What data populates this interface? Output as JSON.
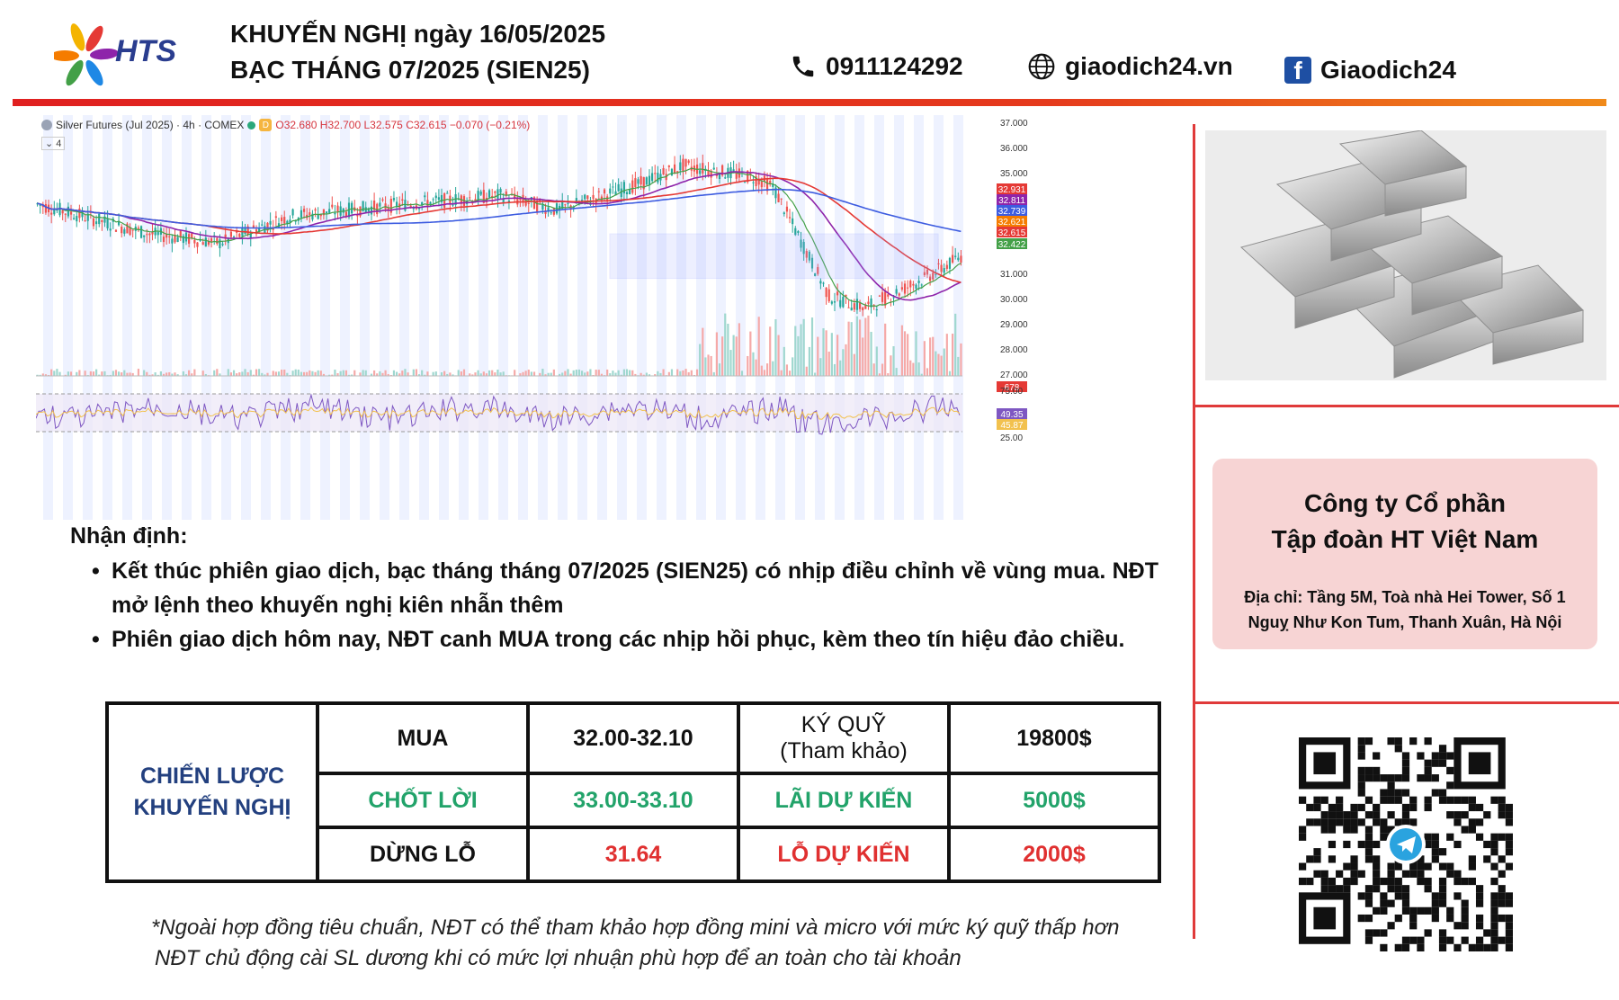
{
  "brand": {
    "name": "HTS",
    "colors": [
      "#e53935",
      "#f4b400",
      "#1e88e5",
      "#43a047",
      "#8e24aa",
      "#2a3d8f"
    ]
  },
  "header": {
    "title_line1": "KHUYẾN NGHỊ ngày 16/05/2025",
    "title_line2": "BẠC THÁNG 07/2025 (SIEN25)",
    "phone": "0911124292",
    "website": "giaodich24.vn",
    "facebook": "Giaodich24",
    "icons": [
      "phone-icon",
      "globe-icon",
      "facebook-icon"
    ]
  },
  "chart": {
    "symbol": "Silver Futures (Jul 2025) · 4h · COMEX",
    "badge": "D",
    "ohlc": "O32.680 H32.700 L32.575 C32.615 −0.070 (−0.21%)",
    "indicator_count": "4",
    "price_axis": [
      "37.000",
      "36.000",
      "35.000",
      "32.931",
      "32.811",
      "32.739",
      "32.621",
      "32.615",
      "32.422",
      "31.000",
      "30.000",
      "29.000",
      "28.000",
      "27.000",
      "678"
    ],
    "rsi_axis": [
      "75.00",
      "49.35",
      "45.87",
      "25.00"
    ],
    "colors": {
      "up": "#26a69a",
      "down": "#ef5350",
      "ma_red": "#e53935",
      "ma_blue": "#3d5ce0",
      "ma_purple": "#8e24aa",
      "ma_green": "#43a047",
      "range_box": "#9fa8ff"
    }
  },
  "analysis": {
    "heading": "Nhận định:",
    "bullets": [
      "Kết thúc phiên giao dịch, bạc tháng tháng 07/2025 (SIEN25) có nhịp điều chỉnh về vùng mua. NĐT mở lệnh theo khuyến nghị kiên nhẫn thêm",
      "Phiên giao dịch hôm nay, NĐT canh MUA trong các nhịp hồi phục, kèm theo tín hiệu đảo chiều."
    ]
  },
  "strategy": {
    "label_line1": "CHIẾN LƯỢC",
    "label_line2": "KHUYẾN NGHỊ",
    "buy_label": "MUA",
    "buy_value": "32.00-32.10",
    "margin_label_line1": "KÝ QUỸ",
    "margin_label_line2": "(Tham khảo)",
    "margin_value": "19800$",
    "tp_label": "CHỐT LỜI",
    "tp_value": "33.00-33.10",
    "profit_label": "LÃI DỰ KIẾN",
    "profit_value": "5000$",
    "sl_label": "DỪNG LỖ",
    "sl_value": "31.64",
    "loss_label": "LỖ DỰ KIẾN",
    "loss_value": "2000$"
  },
  "notes": {
    "line1": "*Ngoài hợp đồng tiêu chuẩn, NĐT có thể tham khảo hợp đồng mini và micro với mức ký quỹ thấp hơn",
    "line2": "NĐT chủ động cài SL dương khi có mức lợi nhuận phù hợp để an toàn cho tài khoản"
  },
  "company": {
    "name_line1": "Công ty Cổ phần",
    "name_line2": "Tập đoàn HT Việt Nam",
    "address_line1": "Địa chỉ: Tầng 5M, Toà nhà Hei Tower, Số 1",
    "address_line2": "Nguỵ Như Kon Tum, Thanh Xuân, Hà Nội"
  }
}
